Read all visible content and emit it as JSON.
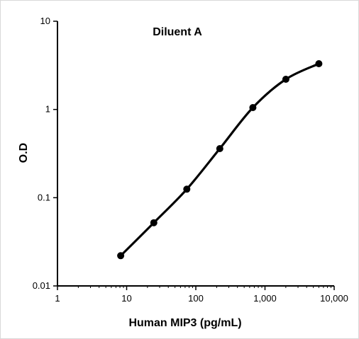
{
  "chart_data": {
    "type": "line",
    "title": "Diluent A",
    "xlabel": "Human MIP3 (pg/mL)",
    "ylabel": "O.D",
    "x_scale": "log",
    "y_scale": "log",
    "xlim": [
      1,
      10000
    ],
    "ylim": [
      0.01,
      10
    ],
    "x_ticks": [
      {
        "value": 1,
        "label": "1"
      },
      {
        "value": 10,
        "label": "10"
      },
      {
        "value": 100,
        "label": "100"
      },
      {
        "value": 1000,
        "label": "1,000"
      },
      {
        "value": 10000,
        "label": "10,000"
      }
    ],
    "y_ticks": [
      {
        "value": 0.01,
        "label": "0.01"
      },
      {
        "value": 0.1,
        "label": "0.1"
      },
      {
        "value": 1,
        "label": "1"
      },
      {
        "value": 10,
        "label": "10"
      }
    ],
    "grid": false,
    "series": [
      {
        "x": [
          8.2,
          24.7,
          74.1,
          222,
          667,
          2000,
          6000
        ],
        "y": [
          0.022,
          0.052,
          0.125,
          0.36,
          1.05,
          2.2,
          3.3
        ]
      }
    ],
    "colors": {
      "line": "#000000",
      "axis": "#000000"
    }
  }
}
